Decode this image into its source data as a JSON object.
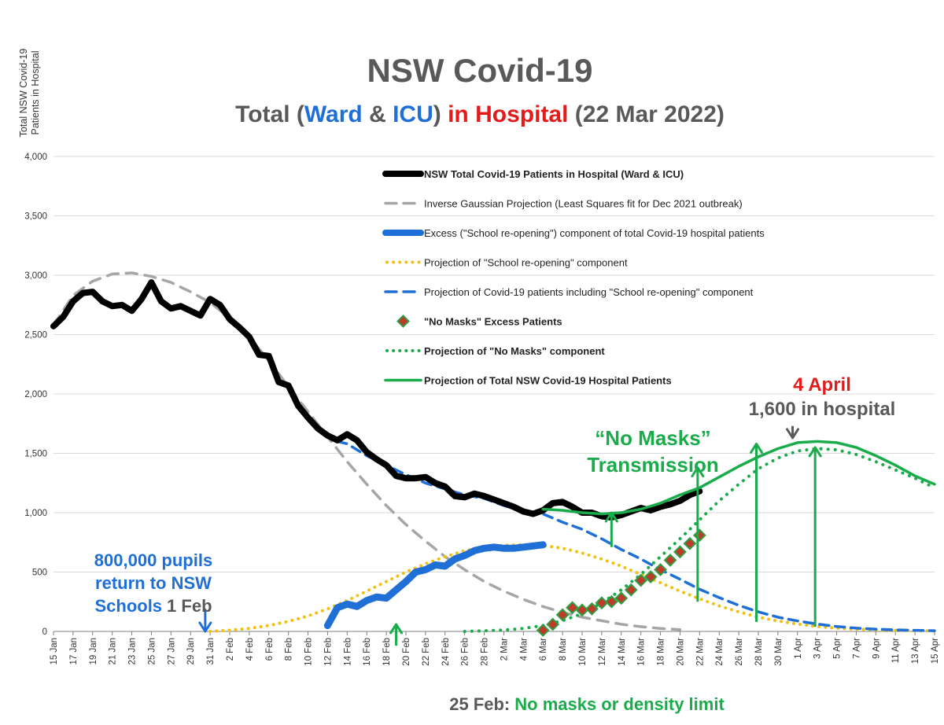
{
  "chart_data": {
    "type": "line",
    "title": "NSW Covid-19",
    "subtitle_parts": [
      "Total (",
      "Ward",
      " & ",
      "ICU",
      ")",
      " in Hospital",
      " (22 Mar 2022)"
    ],
    "ylabel_lines": [
      "Total NSW Covid-19",
      "Patients in Hospital"
    ],
    "ylim": [
      0,
      4000
    ],
    "y_ticks": [
      "0",
      "500",
      "1,000",
      "1,500",
      "2,000",
      "2,500",
      "3,000",
      "3,500",
      "4,000"
    ],
    "x_ticks": [
      "15 Jan",
      "17 Jan",
      "19 Jan",
      "21 Jan",
      "23 Jan",
      "25 Jan",
      "27 Jan",
      "29 Jan",
      "31 Jan",
      "2 Feb",
      "4 Feb",
      "6 Feb",
      "8 Feb",
      "10 Feb",
      "12 Feb",
      "14 Feb",
      "16 Feb",
      "18 Feb",
      "20 Feb",
      "22 Feb",
      "24 Feb",
      "26 Feb",
      "28 Feb",
      "2 Mar",
      "4 Mar",
      "6 Mar",
      "8 Mar",
      "10 Mar",
      "12 Mar",
      "14 Mar",
      "16 Mar",
      "18 Mar",
      "20 Mar",
      "22 Mar",
      "24 Mar",
      "26 Mar",
      "28 Mar",
      "30 Mar",
      "1 Apr",
      "3 Apr",
      "5 Apr",
      "7 Apr",
      "9 Apr",
      "11 Apr",
      "13 Apr",
      "15 Apr"
    ],
    "x_note": "x values are day numbers: 0 = 15 Jan, 90 = 15 Apr",
    "legend": [
      {
        "label": "NSW Total Covid-19 Patients in Hospital (Ward & ICU)",
        "bold": true,
        "color": "#000000",
        "style": "thick"
      },
      {
        "label": "Inverse Gaussian Projection (Least Squares fit for Dec 2021 outbreak)",
        "bold": false,
        "color": "#a6a6a6",
        "style": "dash"
      },
      {
        "label": "Excess (\"School re-opening\") component of total Covid-19 hospital patients",
        "bold": false,
        "color": "#1f6fd6",
        "style": "thick"
      },
      {
        "label": "Projection of \"School re-opening\" component",
        "bold": false,
        "color": "#f2c010",
        "style": "dot"
      },
      {
        "label": "Projection of Covid-19 patients including  \"School re-opening\" component",
        "bold": false,
        "color": "#1f6fd6",
        "style": "dash"
      },
      {
        "label": "\"No Masks\" Excess Patients",
        "bold": true,
        "color": "#c0392b",
        "style": "diamond"
      },
      {
        "label": "Projection of \"No Masks\" component",
        "bold": true,
        "color": "#1aab4a",
        "style": "dot"
      },
      {
        "label": "Projection of Total NSW Covid-19 Hospital Patients",
        "bold": true,
        "color": "#1aab4a",
        "style": "solid"
      }
    ],
    "series": [
      {
        "name": "NSW Total Covid-19 Patients in Hospital (Ward & ICU)",
        "x": [
          0,
          1,
          2,
          3,
          4,
          5,
          6,
          7,
          8,
          9,
          10,
          11,
          12,
          13,
          14,
          15,
          16,
          17,
          18,
          19,
          20,
          21,
          22,
          23,
          24,
          25,
          26,
          27,
          28,
          29,
          30,
          31,
          32,
          33,
          34,
          35,
          36,
          37,
          38,
          39,
          40,
          41,
          42,
          43,
          44,
          45,
          46,
          47,
          48,
          49,
          50,
          51,
          52,
          53,
          54,
          55,
          56,
          57,
          58,
          59,
          60,
          61,
          62,
          63,
          64,
          65,
          66
        ],
        "values": [
          2570,
          2650,
          2780,
          2850,
          2860,
          2780,
          2740,
          2750,
          2700,
          2800,
          2940,
          2780,
          2720,
          2740,
          2700,
          2660,
          2800,
          2750,
          2630,
          2560,
          2480,
          2330,
          2320,
          2100,
          2070,
          1900,
          1800,
          1710,
          1650,
          1610,
          1660,
          1610,
          1510,
          1450,
          1400,
          1310,
          1290,
          1290,
          1300,
          1250,
          1220,
          1140,
          1130,
          1160,
          1140,
          1110,
          1080,
          1050,
          1010,
          990,
          1020,
          1080,
          1090,
          1050,
          1000,
          1000,
          970,
          960,
          980,
          1010,
          1040,
          1020,
          1050,
          1070,
          1100,
          1150,
          1180
        ],
        "color": "#000000"
      },
      {
        "name": "Inverse Gaussian Projection (Least Squares fit for Dec 2021 outbreak)",
        "x": [
          0,
          2,
          4,
          6,
          8,
          10,
          12,
          14,
          16,
          18,
          20,
          22,
          24,
          26,
          28,
          30,
          32,
          34,
          36,
          38,
          40,
          42,
          44,
          46,
          48,
          50,
          52,
          54,
          56,
          58,
          60,
          62,
          64
        ],
        "values": [
          2580,
          2830,
          2950,
          3010,
          3020,
          2990,
          2940,
          2860,
          2770,
          2640,
          2480,
          2280,
          2060,
          1850,
          1640,
          1430,
          1240,
          1060,
          900,
          760,
          630,
          520,
          420,
          340,
          270,
          210,
          160,
          120,
          90,
          60,
          40,
          25,
          15
        ],
        "color": "#a6a6a6"
      },
      {
        "name": "Excess (\"School re-opening\") component",
        "x": [
          28,
          29,
          30,
          31,
          32,
          33,
          34,
          35,
          36,
          37,
          38,
          39,
          40,
          41,
          42,
          43,
          44,
          45,
          46,
          47,
          48,
          49,
          50
        ],
        "values": [
          50,
          200,
          230,
          210,
          260,
          290,
          280,
          350,
          420,
          500,
          520,
          560,
          550,
          610,
          640,
          680,
          700,
          710,
          700,
          700,
          710,
          720,
          730
        ],
        "color": "#1f6fd6"
      },
      {
        "name": "Projection of \"School re-opening\" component",
        "x": [
          16,
          18,
          20,
          22,
          24,
          26,
          28,
          30,
          32,
          34,
          36,
          38,
          40,
          42,
          44,
          46,
          48,
          50,
          52,
          54,
          56,
          58,
          60,
          62,
          64,
          66,
          68,
          70,
          72,
          74,
          76,
          78,
          80,
          82,
          84,
          86,
          88,
          90
        ],
        "values": [
          0,
          10,
          25,
          50,
          85,
          130,
          190,
          260,
          340,
          420,
          500,
          570,
          630,
          680,
          710,
          725,
          730,
          725,
          700,
          660,
          610,
          550,
          480,
          410,
          340,
          275,
          215,
          165,
          120,
          88,
          62,
          42,
          28,
          19,
          13,
          9,
          6,
          4
        ],
        "color": "#f2c010"
      },
      {
        "name": "Projection of Covid-19 patients including \"School re-opening\" component",
        "x": [
          29,
          30,
          32,
          34,
          36,
          38,
          40,
          42,
          44,
          46,
          48,
          50,
          52,
          54,
          56,
          58,
          60,
          62,
          64,
          66,
          68,
          70,
          72,
          74,
          76,
          78,
          80,
          82,
          84,
          86,
          88,
          90
        ],
        "values": [
          1600,
          1580,
          1480,
          1400,
          1320,
          1250,
          1200,
          1150,
          1120,
          1060,
          1010,
          990,
          920,
          860,
          780,
          690,
          610,
          520,
          440,
          355,
          285,
          220,
          165,
          120,
          88,
          62,
          42,
          28,
          19,
          13,
          9,
          6
        ],
        "color": "#1f6fd6"
      },
      {
        "name": "\"No Masks\" Excess Patients",
        "x": [
          50,
          51,
          52,
          53,
          54,
          55,
          56,
          57,
          58,
          59,
          60,
          61,
          62,
          63,
          64,
          65,
          66
        ],
        "values": [
          10,
          60,
          140,
          200,
          180,
          190,
          240,
          250,
          280,
          350,
          430,
          460,
          520,
          600,
          670,
          740,
          810
        ],
        "color": "#c0392b"
      },
      {
        "name": "Projection of \"No Masks\" component",
        "x": [
          42,
          44,
          46,
          48,
          50,
          52,
          54,
          56,
          58,
          60,
          62,
          64,
          66,
          68,
          70,
          72,
          74,
          76,
          78,
          80,
          82,
          84,
          86,
          88,
          90
        ],
        "values": [
          0,
          5,
          12,
          25,
          50,
          90,
          150,
          240,
          350,
          480,
          630,
          780,
          940,
          1100,
          1240,
          1370,
          1460,
          1520,
          1540,
          1530,
          1490,
          1430,
          1360,
          1290,
          1210
        ],
        "color": "#1aab4a"
      },
      {
        "name": "Projection of Total NSW Covid-19 Hospital Patients",
        "x": [
          50,
          52,
          54,
          56,
          58,
          60,
          62,
          64,
          66,
          68,
          70,
          72,
          74,
          76,
          78,
          80,
          82,
          84,
          86,
          88,
          90
        ],
        "values": [
          1030,
          1020,
          1000,
          990,
          1000,
          1030,
          1080,
          1150,
          1210,
          1300,
          1390,
          1470,
          1540,
          1590,
          1600,
          1590,
          1550,
          1480,
          1400,
          1310,
          1240
        ],
        "color": "#1aab4a"
      }
    ],
    "arrows": [
      {
        "x": 15.5,
        "from": 190,
        "to": 0,
        "color": "#1f6fd6"
      },
      {
        "x": 35,
        "from": -120,
        "to": 60,
        "color": "#1aab4a"
      },
      {
        "x": 57,
        "from": 710,
        "to": 1000,
        "color": "#1aab4a"
      },
      {
        "x": 65.8,
        "from": 250,
        "to": 1380,
        "color": "#1aab4a"
      },
      {
        "x": 71.8,
        "from": 80,
        "to": 1580,
        "color": "#1aab4a"
      },
      {
        "x": 77.8,
        "from": 40,
        "to": 1550,
        "color": "#1aab4a"
      },
      {
        "x": 75.5,
        "from": 1730,
        "to": 1630,
        "color": "#595959"
      }
    ],
    "annotations": {
      "pupils_lines": [
        "800,000 pupils",
        "return to NSW"
      ],
      "pupils_line3": "Schools",
      "pupils_date": "1 Feb",
      "nomasks_lines": [
        "“No Masks”",
        "Transmission"
      ],
      "april_title": "4 April",
      "april_sub": "1,600 in hospital",
      "feb25_date": "25 Feb:",
      "feb25_text": "No masks or density limit"
    },
    "colors": {
      "blue": "#1f6fd6",
      "red": "#e31b1b",
      "green": "#1aab4a",
      "grey": "#595959"
    }
  }
}
